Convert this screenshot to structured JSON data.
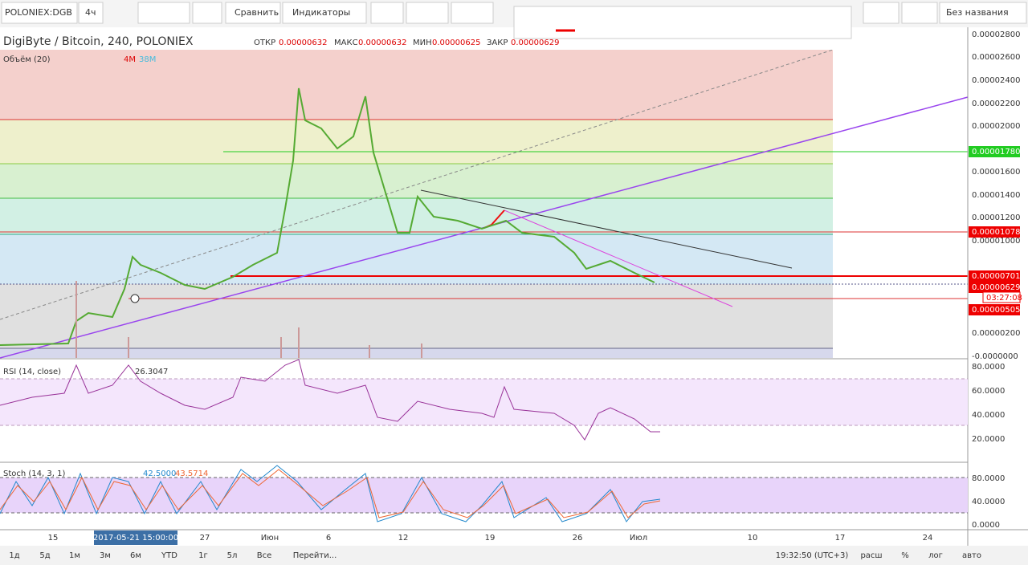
{
  "toolbar": {
    "symbol": "POLONIEX:DGB",
    "interval": "4ч",
    "compare": "Сравнить",
    "indicators": "Индикаторы",
    "layout_name": "Без названия"
  },
  "header": {
    "title": "DigiByte / Bitcoin, 240, POLONIEX",
    "open_label": "ОТКР",
    "open": "0.00000632",
    "high_label": "МАКС",
    "high": "0.00000632",
    "low_label": "МИН",
    "low": "0.00000625",
    "close_label": "ЗАКР",
    "close": "0.00000629"
  },
  "volume": {
    "label": "Объём (20)",
    "value1": "4M",
    "value2": "38M"
  },
  "price_axis": [
    "0.00002800",
    "0.00002600",
    "0.00002400",
    "0.00002200",
    "0.00002000",
    "0.00001600",
    "0.00001400",
    "0.00001200",
    "0.00001000",
    "0.00000200",
    "-0.0000000"
  ],
  "price_badges": [
    "0.00001780",
    "0.00001078",
    "0.00000701",
    "0.00000629",
    "03:27:08",
    "0.00000505"
  ],
  "rsi": {
    "label": "RSI (14, close)",
    "value": "26.3047",
    "axis": [
      "80.0000",
      "60.0000",
      "40.0000",
      "20.0000"
    ]
  },
  "stoch": {
    "label": "Stoch (14, 3, 1)",
    "k": "42.5000",
    "d": "43.5714",
    "axis": [
      "80.0000",
      "40.0000",
      "0.0000"
    ]
  },
  "time_axis": [
    "15",
    "2017-05-21 15:00:00",
    "27",
    "Июн",
    "6",
    "12",
    "19",
    "26",
    "Июл",
    "10",
    "17",
    "24"
  ],
  "bottom_bar": {
    "ranges": [
      "1д",
      "5д",
      "1м",
      "3м",
      "6м",
      "YTD",
      "1г",
      "5л",
      "Все"
    ],
    "goto": "Перейти...",
    "clock": "19:32:50 (UTC+3)",
    "options": [
      "расш",
      "%",
      "лог",
      "авто"
    ]
  }
}
